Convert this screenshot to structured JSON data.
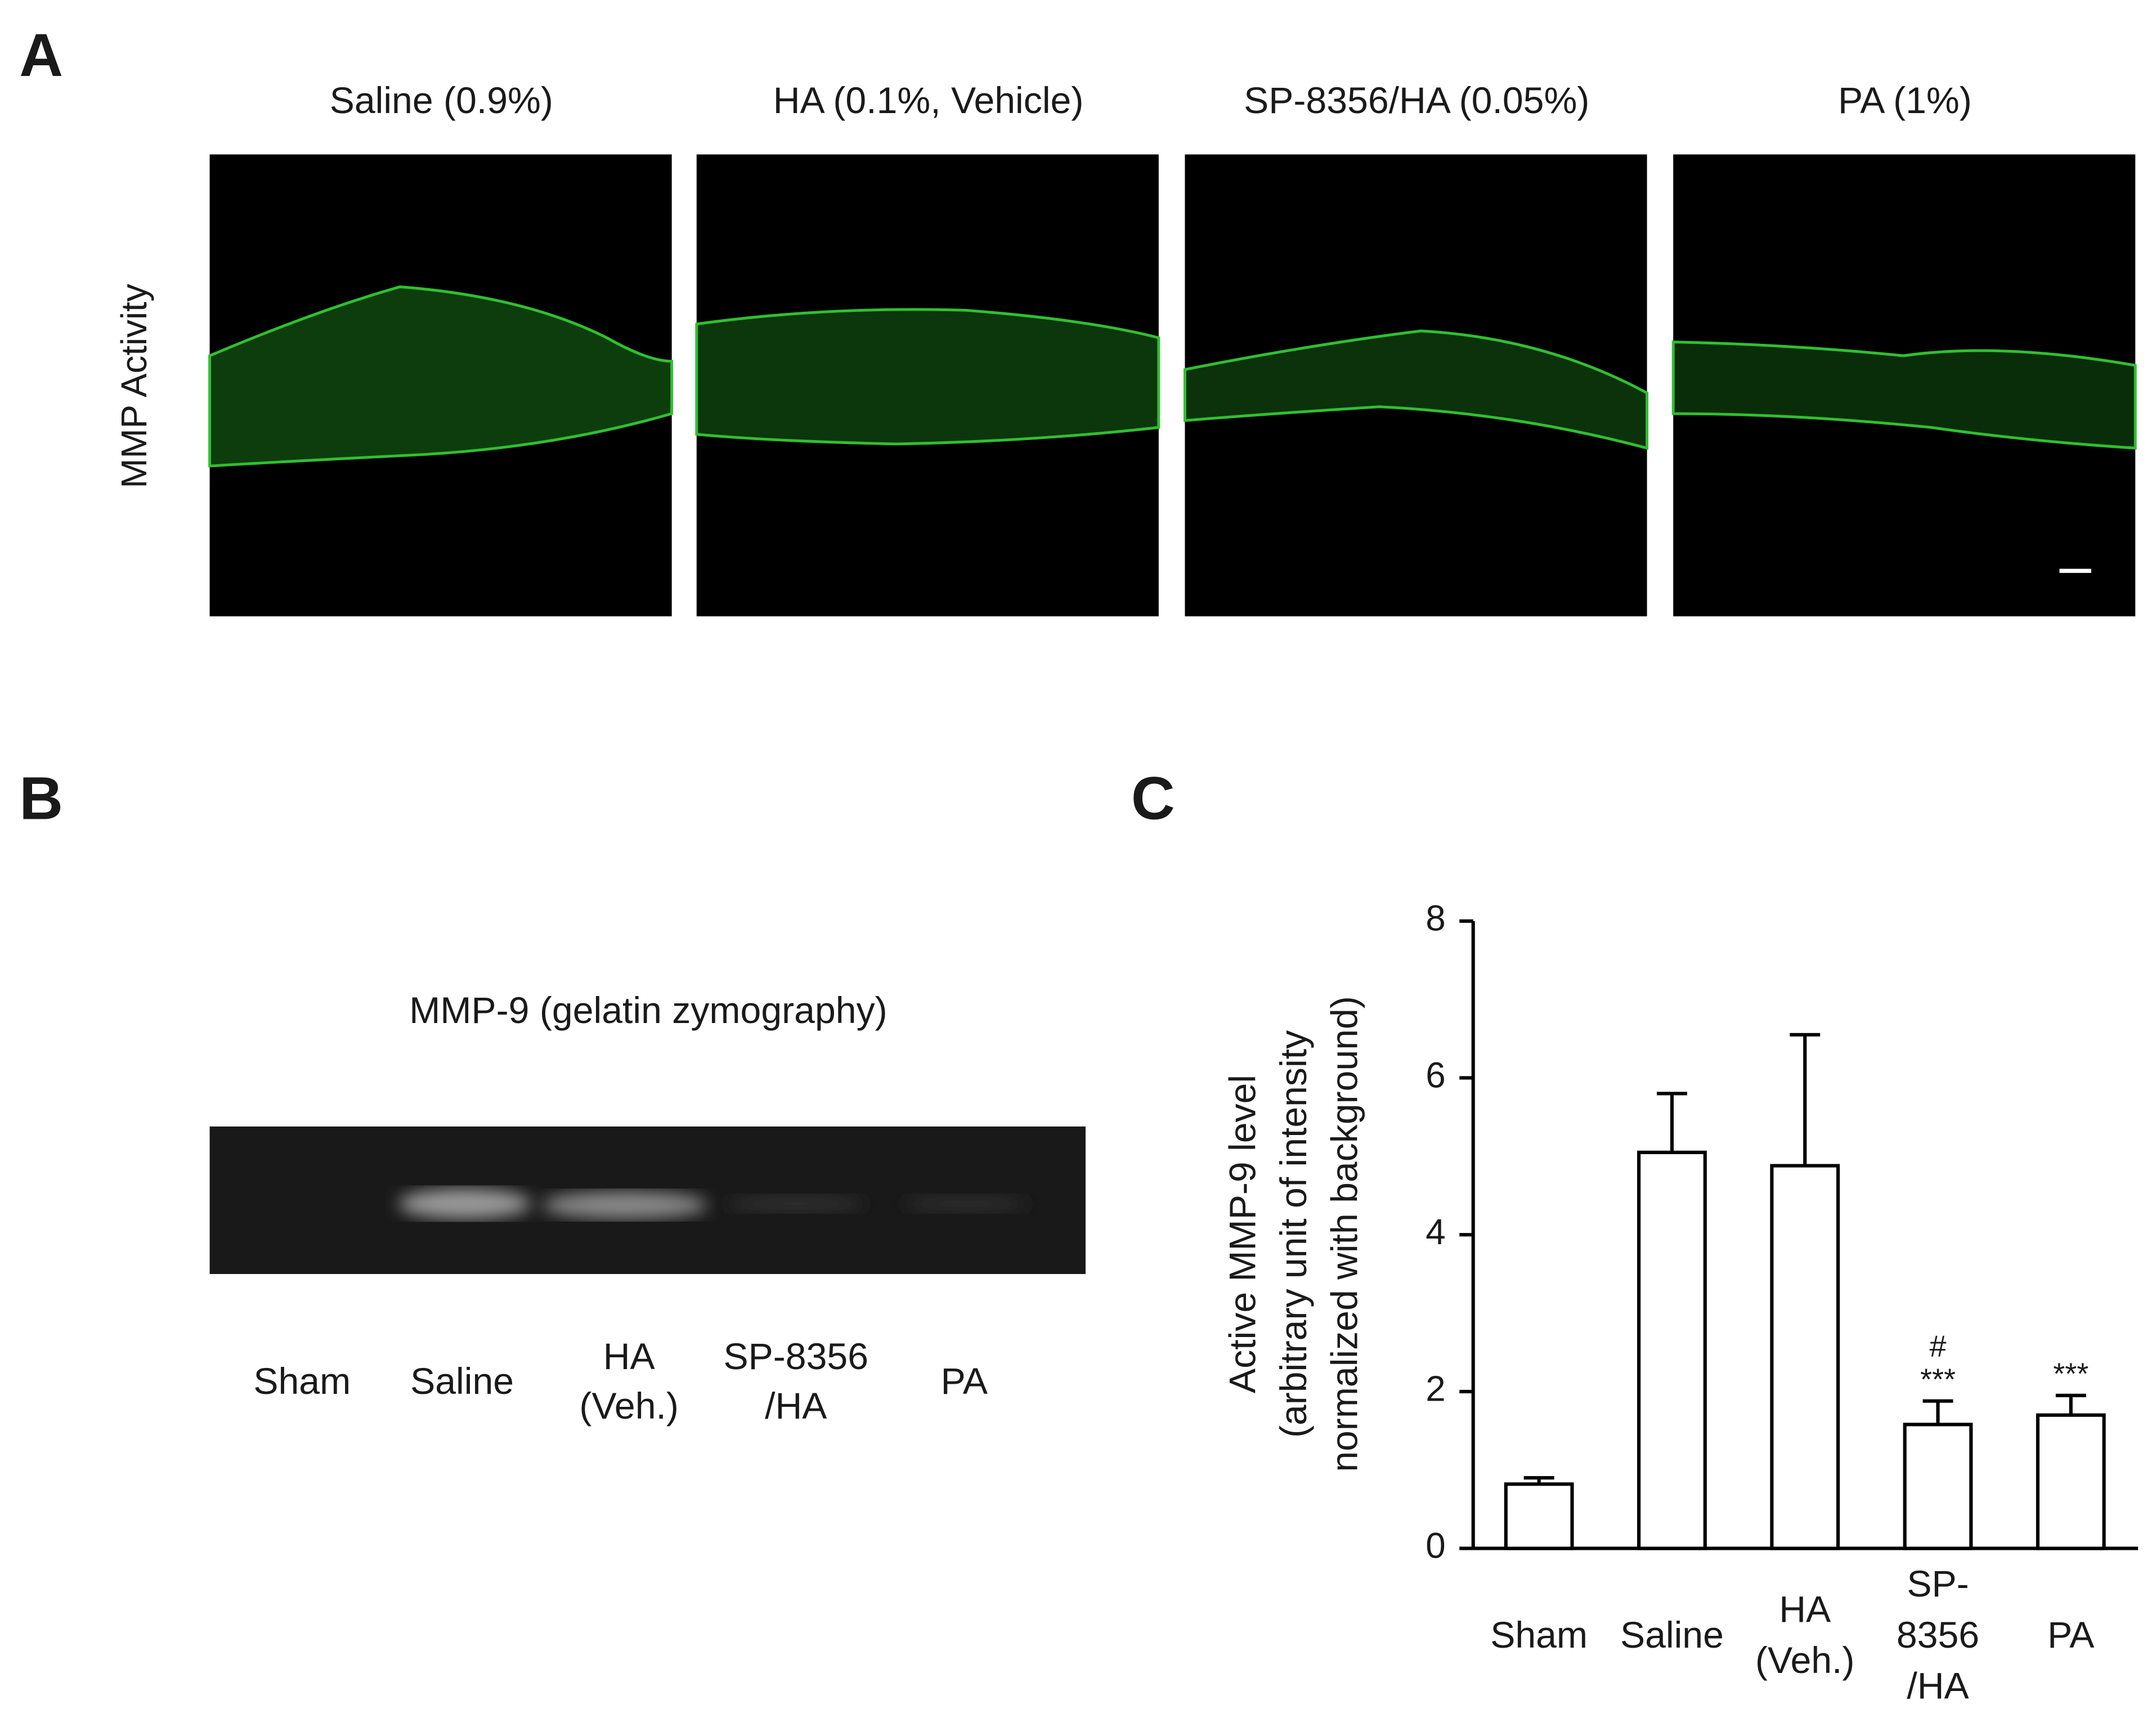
{
  "panel_labels": [
    "A",
    "B",
    "C"
  ],
  "panel_a": {
    "row_label": "MMP Activity",
    "titles": [
      "Saline (0.9%)",
      "HA (0.1%, Vehicle)",
      "SP-8356/HA (0.05%)",
      "PA (1%)"
    ]
  },
  "panel_b": {
    "title": "MMP-9 (gelatin zymography)",
    "lanes": [
      "Sham",
      "Saline",
      "HA\n(Veh.)",
      "SP-8356\n/HA",
      "PA"
    ]
  },
  "chart_data": {
    "type": "bar",
    "y_label": "Active MMP-9 level\n(arbitrary unit of intensity\nnormalized with background)",
    "categories": [
      "Sham",
      "Saline",
      "HA\n(Veh.)",
      "SP-\n8356\n/HA",
      "PA"
    ],
    "values": [
      0.82,
      5.05,
      4.88,
      1.58,
      1.7
    ],
    "errors": [
      0.08,
      0.75,
      1.67,
      0.3,
      0.25
    ],
    "annotations": [
      null,
      null,
      null,
      "#\n***",
      "***"
    ],
    "color": "#ffffff",
    "edge_color": "#000000",
    "ylim": [
      0,
      8
    ],
    "yticks": [
      0,
      2,
      4,
      6,
      8
    ]
  }
}
